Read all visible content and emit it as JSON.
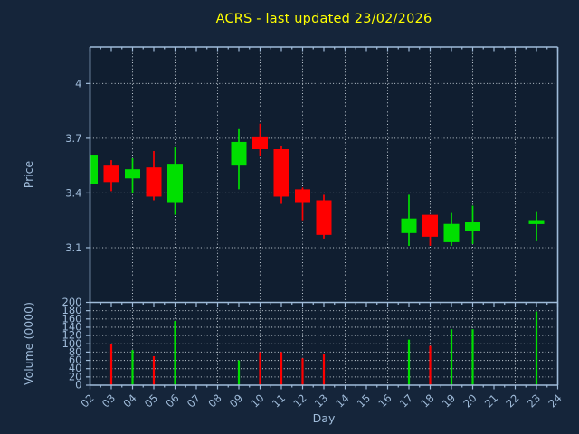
{
  "title": "ACRS - last updated 23/02/2026",
  "colors": {
    "figure_background": "#15253a",
    "plot_background": "#101e30",
    "title": "#ffff00",
    "axis": "#9fbbd9",
    "grid": "#dde6ee",
    "up": "#00e000",
    "down": "#ff0000"
  },
  "chart_data": {
    "type": "candlestick",
    "title": "ACRS - last updated 23/02/2026",
    "xlabel": "Day",
    "price_axis_label": "Price",
    "volume_axis_label": "Volume (0000)",
    "xlim": [
      2,
      24
    ],
    "price_ylim": [
      2.8,
      4.2
    ],
    "volume_ylim": [
      0,
      200
    ],
    "grid": "dotted-white, vertical lines every 2 days, price lines every 0.3, volume lines every 20",
    "legend_position": "none",
    "x_tick_labels": [
      "02",
      "03",
      "04",
      "05",
      "06",
      "07",
      "08",
      "09",
      "10",
      "11",
      "12",
      "13",
      "14",
      "15",
      "16",
      "17",
      "18",
      "19",
      "20",
      "21",
      "22",
      "23",
      "24"
    ],
    "price_ticks": [
      3.1,
      3.4,
      3.7,
      4.0
    ],
    "price_tick_labels": [
      "3.1",
      "3.4",
      "3.7",
      "4"
    ],
    "volume_ticks": [
      0,
      20,
      40,
      60,
      80,
      100,
      120,
      140,
      160,
      180,
      200
    ],
    "volume_tick_labels": [
      "0",
      "20",
      "40",
      "60",
      "80",
      "100",
      "120",
      "140",
      "160",
      "180",
      "200"
    ],
    "candles": [
      {
        "day": 2,
        "open": 3.45,
        "high": 3.61,
        "low": 3.45,
        "close": 3.61,
        "volume": null
      },
      {
        "day": 3,
        "open": 3.55,
        "high": 3.58,
        "low": 3.41,
        "close": 3.46,
        "volume": 100
      },
      {
        "day": 4,
        "open": 3.48,
        "high": 3.59,
        "low": 3.4,
        "close": 3.53,
        "volume": 85
      },
      {
        "day": 5,
        "open": 3.54,
        "high": 3.63,
        "low": 3.36,
        "close": 3.38,
        "volume": 70
      },
      {
        "day": 6,
        "open": 3.35,
        "high": 3.65,
        "low": 3.28,
        "close": 3.56,
        "volume": 155
      },
      {
        "day": 9,
        "open": 3.55,
        "high": 3.75,
        "low": 3.42,
        "close": 3.68,
        "volume": 60
      },
      {
        "day": 10,
        "open": 3.71,
        "high": 3.78,
        "low": 3.6,
        "close": 3.64,
        "volume": 80
      },
      {
        "day": 11,
        "open": 3.64,
        "high": 3.66,
        "low": 3.34,
        "close": 3.38,
        "volume": 80
      },
      {
        "day": 12,
        "open": 3.42,
        "high": 3.43,
        "low": 3.25,
        "close": 3.35,
        "volume": 65
      },
      {
        "day": 13,
        "open": 3.36,
        "high": 3.39,
        "low": 3.15,
        "close": 3.17,
        "volume": 75
      },
      {
        "day": 17,
        "open": 3.18,
        "high": 3.39,
        "low": 3.11,
        "close": 3.26,
        "volume": 110
      },
      {
        "day": 18,
        "open": 3.28,
        "high": 3.28,
        "low": 3.11,
        "close": 3.16,
        "volume": 95
      },
      {
        "day": 19,
        "open": 3.13,
        "high": 3.29,
        "low": 3.11,
        "close": 3.23,
        "volume": 135
      },
      {
        "day": 20,
        "open": 3.19,
        "high": 3.33,
        "low": 3.12,
        "close": 3.24,
        "volume": 135
      },
      {
        "day": 23,
        "open": 3.24,
        "high": 3.3,
        "low": 3.14,
        "close": 3.24,
        "volume": 178
      }
    ]
  }
}
